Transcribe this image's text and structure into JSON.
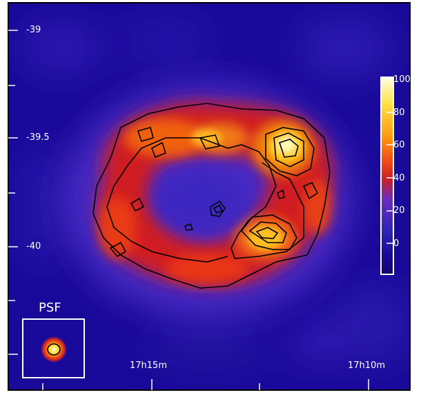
{
  "image": {
    "kind": "astronomical sky map (radio/gamma-ray intensity with contours)",
    "colormap": [
      "#1a0a9a",
      "#4a26c0",
      "#d01818",
      "#f07010",
      "#ffd020",
      "#ffffcc"
    ],
    "background_color": "#1a0a9a",
    "contour_color": "#000000",
    "label_color": "#ffffff"
  },
  "axes": {
    "y_ticks": [
      "-39",
      "-39.5",
      "-40"
    ],
    "x_ticks": [
      "17h15m",
      "17h10m"
    ]
  },
  "colorbar": {
    "ticks": [
      "100",
      "80",
      "60",
      "40",
      "20",
      "0"
    ],
    "range": [
      0,
      100
    ]
  },
  "psf_inset": {
    "label": "PSF"
  }
}
